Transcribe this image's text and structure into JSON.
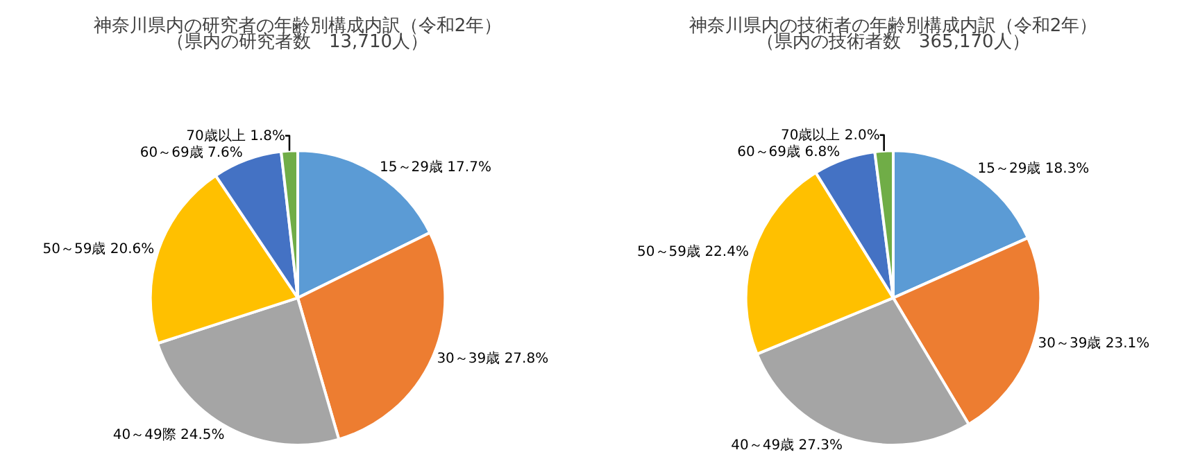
{
  "chart_data": [
    {
      "type": "pie",
      "title": "神奈川県内の研究者の年齢別構成内訳（令和2年）",
      "subtitle": "（県内の研究者数　13,710人）",
      "categories": [
        "15～29歳",
        "30～39歳",
        "40～49際",
        "50～59歳",
        "60～69歳",
        "70歳以上"
      ],
      "values": [
        17.7,
        27.8,
        24.5,
        20.6,
        7.6,
        1.8
      ],
      "value_labels": [
        "17.7%",
        "27.8%",
        "24.5%",
        "20.6%",
        "7.6%",
        "1.8%"
      ],
      "colors": [
        "#5b9bd5",
        "#ed7d31",
        "#a5a5a5",
        "#ffc000",
        "#4472c4",
        "#70ad47"
      ],
      "legend": false
    },
    {
      "type": "pie",
      "title": "神奈川県内の技術者の年齢別構成内訳（令和2年）",
      "subtitle": "（県内の技術者数　365,170人）",
      "categories": [
        "15～29歳",
        "30～39歳",
        "40～49歳",
        "50～59歳",
        "60～69歳",
        "70歳以上"
      ],
      "values": [
        18.3,
        23.1,
        27.3,
        22.4,
        6.8,
        2.0
      ],
      "value_labels": [
        "18.3%",
        "23.1%",
        "27.3%",
        "22.4%",
        "6.8%",
        "2.0%"
      ],
      "colors": [
        "#5b9bd5",
        "#ed7d31",
        "#a5a5a5",
        "#ffc000",
        "#4472c4",
        "#70ad47"
      ],
      "legend": false
    }
  ]
}
